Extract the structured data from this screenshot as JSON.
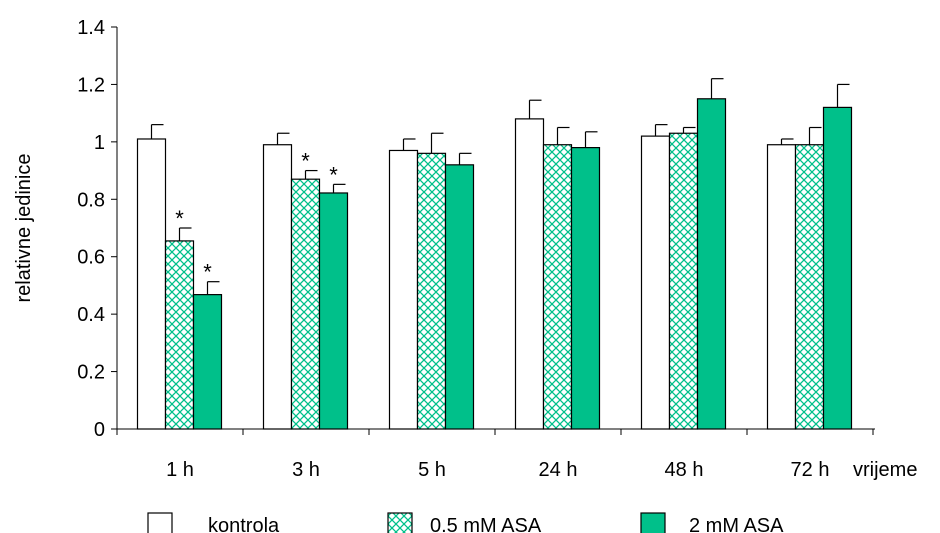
{
  "chart_data": {
    "type": "bar",
    "ylabel": "relativne jedinice",
    "xlabel": "vrijeme",
    "ylim": [
      0,
      1.4
    ],
    "yticks": [
      "0",
      "0.2",
      "0.4",
      "0.6",
      "0.8",
      "1",
      "1.2",
      "1.4"
    ],
    "categories": [
      "1 h",
      "3 h",
      "5 h",
      "24 h",
      "48 h",
      "72 h"
    ],
    "series": [
      {
        "name": "kontrola",
        "pattern": "none",
        "color": "#ffffff",
        "values": [
          1.01,
          0.99,
          0.97,
          1.08,
          1.02,
          0.99
        ],
        "errors": [
          0.05,
          0.04,
          0.04,
          0.065,
          0.04,
          0.02
        ],
        "significant": [
          false,
          false,
          false,
          false,
          false,
          false
        ]
      },
      {
        "name": "0.5 mM ASA",
        "pattern": "crosshatch",
        "color": "#00c08a",
        "values": [
          0.655,
          0.87,
          0.96,
          0.99,
          1.03,
          0.99
        ],
        "errors": [
          0.045,
          0.03,
          0.07,
          0.06,
          0.02,
          0.06
        ],
        "significant": [
          true,
          true,
          false,
          false,
          false,
          false
        ]
      },
      {
        "name": "2 mM ASA",
        "pattern": "solid",
        "color": "#00c08a",
        "values": [
          0.468,
          0.822,
          0.92,
          0.98,
          1.15,
          1.12
        ],
        "errors": [
          0.045,
          0.03,
          0.04,
          0.055,
          0.07,
          0.08
        ],
        "significant": [
          true,
          true,
          false,
          false,
          false,
          false
        ]
      }
    ],
    "significance_marker": "*",
    "legend_position": "bottom",
    "grid": false
  }
}
